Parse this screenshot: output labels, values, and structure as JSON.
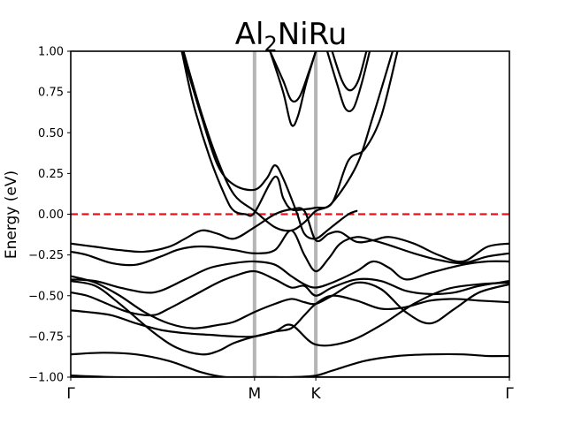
{
  "chart_data": {
    "type": "line",
    "title": {
      "base": "Al",
      "subscript": "2",
      "rest": "NiRu"
    },
    "ylabel": "Energy (eV)",
    "xlabel": "",
    "ylim": [
      -1.0,
      1.0
    ],
    "yticks": [
      -1.0,
      -0.75,
      -0.5,
      -0.25,
      0.0,
      0.25,
      0.5,
      0.75,
      1.0
    ],
    "ytick_labels": [
      "−1.00",
      "−0.75",
      "−0.50",
      "−0.25",
      "0.00",
      "0.25",
      "0.50",
      "0.75",
      "1.00"
    ],
    "xlim": [
      0,
      2.685
    ],
    "kpoints": [
      {
        "label": "Γ",
        "x": 0
      },
      {
        "label": "M",
        "x": 1.125
      },
      {
        "label": "K",
        "x": 1.5
      },
      {
        "label": "Γ",
        "x": 2.685
      }
    ],
    "fermi_level": 0.0,
    "colors": {
      "bands": "#000000",
      "fermi": "#e8101b",
      "kline": "#b5b5b5"
    },
    "bands": [
      {
        "name": "band-1",
        "x": [
          0,
          0.3,
          0.6,
          0.85,
          1.0,
          1.125,
          1.25,
          1.35,
          1.5,
          1.7,
          1.9,
          2.1,
          2.3,
          2.5,
          2.685
        ],
        "y": [
          -0.99,
          -1.0,
          -1.0,
          -1.0,
          -1.0,
          -1.0,
          -1.0,
          -1.0,
          -1.0,
          -1.0,
          -1.0,
          -1.0,
          -1.0,
          -1.0,
          -1.0
        ]
      },
      {
        "name": "band-2",
        "x": [
          0,
          0.2,
          0.4,
          0.6,
          0.8,
          0.95,
          1.125,
          1.25,
          1.35,
          1.5,
          1.6,
          1.8,
          2.0,
          2.2,
          2.4,
          2.55,
          2.685
        ],
        "y": [
          -0.86,
          -0.85,
          -0.86,
          -0.9,
          -0.97,
          -1.0,
          -1.0,
          -1.0,
          -1.0,
          -0.99,
          -0.96,
          -0.9,
          -0.87,
          -0.86,
          -0.86,
          -0.87,
          -0.87
        ]
      },
      {
        "name": "band-3",
        "x": [
          0,
          0.15,
          0.3,
          0.5,
          0.65,
          0.8,
          0.9,
          1.0,
          1.125,
          1.25,
          1.35,
          1.5,
          1.7,
          1.9,
          2.1,
          2.3,
          2.5,
          2.685
        ],
        "y": [
          -0.41,
          -0.44,
          -0.55,
          -0.72,
          -0.82,
          -0.86,
          -0.84,
          -0.79,
          -0.75,
          -0.72,
          -0.68,
          -0.8,
          -0.78,
          -0.68,
          -0.55,
          -0.46,
          -0.43,
          -0.42
        ]
      },
      {
        "name": "band-4",
        "x": [
          0,
          0.15,
          0.3,
          0.45,
          0.6,
          0.75,
          0.9,
          1.0,
          1.125,
          1.25,
          1.35,
          1.43,
          1.5,
          1.6,
          1.75,
          1.9,
          2.05,
          2.2,
          2.35,
          2.5,
          2.685
        ],
        "y": [
          -0.38,
          -0.42,
          -0.5,
          -0.6,
          -0.67,
          -0.7,
          -0.68,
          -0.66,
          -0.6,
          -0.55,
          -0.52,
          -0.54,
          -0.55,
          -0.5,
          -0.42,
          -0.46,
          -0.6,
          -0.67,
          -0.58,
          -0.48,
          -0.43
        ]
      },
      {
        "name": "band-5",
        "x": [
          0,
          0.1,
          0.25,
          0.4,
          0.55,
          0.7,
          0.85,
          1.0,
          1.125,
          1.25,
          1.35,
          1.43,
          1.5,
          1.6,
          1.75,
          1.9,
          2.05,
          2.2,
          2.35,
          2.5,
          2.685
        ],
        "y": [
          -0.59,
          -0.6,
          -0.62,
          -0.67,
          -0.71,
          -0.73,
          -0.74,
          -0.75,
          -0.75,
          -0.72,
          -0.7,
          -0.62,
          -0.55,
          -0.5,
          -0.53,
          -0.58,
          -0.57,
          -0.53,
          -0.52,
          -0.53,
          -0.54
        ]
      },
      {
        "name": "band-6",
        "x": [
          0,
          0.1,
          0.2,
          0.35,
          0.5,
          0.6,
          0.75,
          0.9,
          1.0,
          1.125,
          1.25,
          1.35,
          1.43,
          1.5,
          1.6,
          1.75,
          1.9,
          2.05,
          2.2,
          2.35,
          2.5,
          2.685
        ],
        "y": [
          -0.48,
          -0.5,
          -0.54,
          -0.6,
          -0.62,
          -0.58,
          -0.5,
          -0.42,
          -0.38,
          -0.35,
          -0.4,
          -0.45,
          -0.44,
          -0.5,
          -0.45,
          -0.4,
          -0.41,
          -0.47,
          -0.49,
          -0.48,
          -0.44,
          -0.41
        ]
      },
      {
        "name": "band-7",
        "x": [
          0,
          0.15,
          0.3,
          0.45,
          0.55,
          0.7,
          0.85,
          1.0,
          1.125,
          1.25,
          1.35,
          1.43,
          1.5,
          1.6,
          1.75,
          1.85,
          1.95,
          2.05,
          2.2,
          2.4,
          2.55,
          2.685
        ],
        "y": [
          -0.4,
          -0.41,
          -0.45,
          -0.48,
          -0.47,
          -0.4,
          -0.33,
          -0.3,
          -0.29,
          -0.31,
          -0.38,
          -0.43,
          -0.45,
          -0.42,
          -0.35,
          -0.29,
          -0.33,
          -0.4,
          -0.36,
          -0.31,
          -0.29,
          -0.29
        ]
      },
      {
        "name": "band-8",
        "x": [
          0,
          0.1,
          0.25,
          0.4,
          0.55,
          0.65,
          0.75,
          0.85,
          1.0,
          1.125,
          1.25,
          1.35,
          1.43,
          1.5,
          1.58,
          1.65,
          1.75,
          1.85,
          1.95,
          2.1,
          2.25,
          2.4,
          2.55,
          2.685
        ],
        "y": [
          -0.23,
          -0.25,
          -0.3,
          -0.31,
          -0.26,
          -0.22,
          -0.2,
          -0.2,
          -0.22,
          -0.24,
          -0.22,
          -0.1,
          -0.25,
          -0.35,
          -0.27,
          -0.18,
          -0.14,
          -0.16,
          -0.19,
          -0.24,
          -0.28,
          -0.3,
          -0.26,
          -0.24
        ]
      },
      {
        "name": "band-9",
        "x": [
          0,
          0.15,
          0.3,
          0.45,
          0.6,
          0.7,
          0.8,
          0.9,
          1.0,
          1.125,
          1.25,
          1.35,
          1.43,
          1.5,
          1.58,
          1.65,
          1.75,
          1.85,
          1.95,
          2.1,
          2.25,
          2.4,
          2.55,
          2.685
        ],
        "y": [
          -0.18,
          -0.2,
          -0.22,
          -0.23,
          -0.2,
          -0.15,
          -0.1,
          -0.12,
          -0.15,
          -0.08,
          0.0,
          0.03,
          0.02,
          -0.16,
          -0.12,
          -0.11,
          -0.17,
          -0.16,
          -0.14,
          -0.18,
          -0.25,
          -0.29,
          -0.2,
          -0.18
        ]
      },
      {
        "name": "band-10",
        "x": [
          0.69,
          0.8,
          0.9,
          1.0,
          1.125,
          1.25,
          1.35,
          1.43,
          1.5,
          1.6,
          1.75,
          1.85,
          1.97
        ],
        "y": [
          1.0,
          0.62,
          0.33,
          0.12,
          0.02,
          -0.08,
          -0.1,
          -0.05,
          0.02,
          0.07,
          0.3,
          0.6,
          1.0
        ]
      },
      {
        "name": "band-11",
        "x": [
          0.68,
          0.75,
          0.85,
          0.95,
          1.0,
          1.07,
          1.125,
          1.25,
          1.3,
          1.35,
          1.43,
          1.5,
          1.6,
          1.7,
          1.8,
          1.9,
          2.0
        ],
        "y": [
          1.0,
          0.68,
          0.35,
          0.1,
          0.02,
          0.0,
          0.01,
          0.23,
          0.1,
          0.03,
          0.03,
          0.04,
          0.07,
          0.33,
          0.4,
          0.6,
          1.0
        ]
      },
      {
        "name": "band-12",
        "x": [
          0.68,
          0.8,
          0.9,
          1.0,
          1.125,
          1.2,
          1.25,
          1.3,
          1.38,
          1.43,
          1.5,
          1.57,
          1.62,
          1.7,
          1.75
        ],
        "y": [
          1.0,
          0.6,
          0.3,
          0.18,
          0.15,
          0.22,
          0.3,
          0.22,
          0.02,
          -0.12,
          -0.15,
          -0.1,
          -0.06,
          0.0,
          0.02
        ]
      },
      {
        "name": "band-13",
        "x": [
          1.22,
          1.3,
          1.35,
          1.39,
          1.44,
          1.5
        ],
        "y": [
          1.0,
          0.75,
          0.55,
          0.6,
          0.8,
          1.0
        ]
      },
      {
        "name": "band-14",
        "x": [
          1.22,
          1.3,
          1.35,
          1.4,
          1.46,
          1.5
        ],
        "y": [
          1.0,
          0.82,
          0.7,
          0.72,
          0.88,
          1.0
        ]
      },
      {
        "name": "band-15",
        "x": [
          1.57,
          1.63,
          1.68,
          1.73,
          1.78,
          1.83
        ],
        "y": [
          1.0,
          0.8,
          0.65,
          0.65,
          0.8,
          1.0
        ]
      },
      {
        "name": "band-16",
        "x": [
          1.6,
          1.66,
          1.71,
          1.76,
          1.81
        ],
        "y": [
          1.0,
          0.82,
          0.76,
          0.82,
          1.0
        ]
      }
    ]
  }
}
